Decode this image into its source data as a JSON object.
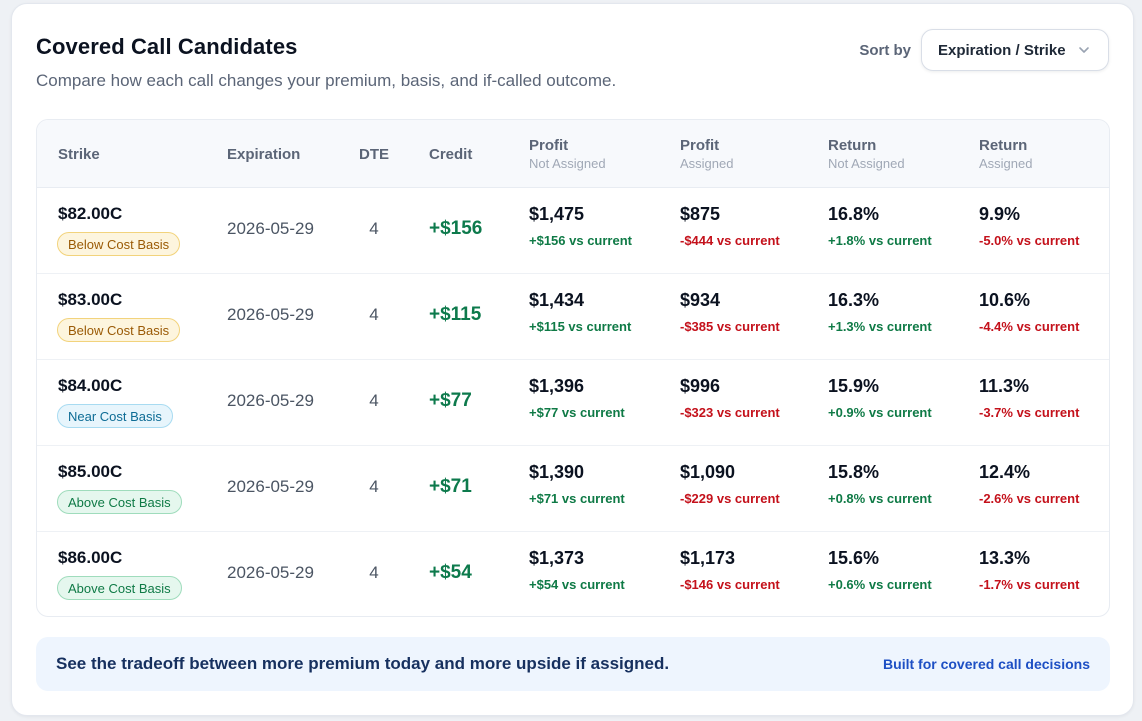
{
  "header": {
    "title": "Covered Call Candidates",
    "subtitle": "Compare how each call changes your premium, basis, and if-called outcome."
  },
  "sort": {
    "label": "Sort by",
    "selected": "Expiration / Strike",
    "icon": "chevron-down-icon"
  },
  "table": {
    "columns": [
      {
        "title": "Strike",
        "sub": ""
      },
      {
        "title": "Expiration",
        "sub": ""
      },
      {
        "title": "DTE",
        "sub": ""
      },
      {
        "title": "Credit",
        "sub": ""
      },
      {
        "title": "Profit",
        "sub": "Not Assigned"
      },
      {
        "title": "Profit",
        "sub": "Assigned"
      },
      {
        "title": "Return",
        "sub": "Not Assigned"
      },
      {
        "title": "Return",
        "sub": "Assigned"
      }
    ],
    "rows": [
      {
        "strike": "$82.00C",
        "badge": "Below Cost Basis",
        "badge_type": "below",
        "expiration": "2026-05-29",
        "dte": "4",
        "credit": "+$156",
        "profit_na": "$1,475",
        "profit_na_delta": "+$156 vs current",
        "profit_a": "$875",
        "profit_a_delta": "-$444 vs current",
        "return_na": "16.8%",
        "return_na_delta": "+1.8% vs current",
        "return_a": "9.9%",
        "return_a_delta": "-5.0% vs current"
      },
      {
        "strike": "$83.00C",
        "badge": "Below Cost Basis",
        "badge_type": "below",
        "expiration": "2026-05-29",
        "dte": "4",
        "credit": "+$115",
        "profit_na": "$1,434",
        "profit_na_delta": "+$115 vs current",
        "profit_a": "$934",
        "profit_a_delta": "-$385 vs current",
        "return_na": "16.3%",
        "return_na_delta": "+1.3% vs current",
        "return_a": "10.6%",
        "return_a_delta": "-4.4% vs current"
      },
      {
        "strike": "$84.00C",
        "badge": "Near Cost Basis",
        "badge_type": "near",
        "expiration": "2026-05-29",
        "dte": "4",
        "credit": "+$77",
        "profit_na": "$1,396",
        "profit_na_delta": "+$77 vs current",
        "profit_a": "$996",
        "profit_a_delta": "-$323 vs current",
        "return_na": "15.9%",
        "return_na_delta": "+0.9% vs current",
        "return_a": "11.3%",
        "return_a_delta": "-3.7% vs current"
      },
      {
        "strike": "$85.00C",
        "badge": "Above Cost Basis",
        "badge_type": "above",
        "expiration": "2026-05-29",
        "dte": "4",
        "credit": "+$71",
        "profit_na": "$1,390",
        "profit_na_delta": "+$71 vs current",
        "profit_a": "$1,090",
        "profit_a_delta": "-$229 vs current",
        "return_na": "15.8%",
        "return_na_delta": "+0.8% vs current",
        "return_a": "12.4%",
        "return_a_delta": "-2.6% vs current"
      },
      {
        "strike": "$86.00C",
        "badge": "Above Cost Basis",
        "badge_type": "above",
        "expiration": "2026-05-29",
        "dte": "4",
        "credit": "+$54",
        "profit_na": "$1,373",
        "profit_na_delta": "+$54 vs current",
        "profit_a": "$1,173",
        "profit_a_delta": "-$146 vs current",
        "return_na": "15.6%",
        "return_na_delta": "+0.6% vs current",
        "return_a": "13.3%",
        "return_a_delta": "-1.7% vs current"
      }
    ]
  },
  "footer": {
    "message": "See the tradeoff between more premium today and more upside if assigned.",
    "tagline": "Built for covered call decisions"
  },
  "colors": {
    "positive": "#0f7a46",
    "negative": "#c4111b",
    "credit": "#0d7a4c",
    "footer_bg": "#eef5fe"
  }
}
